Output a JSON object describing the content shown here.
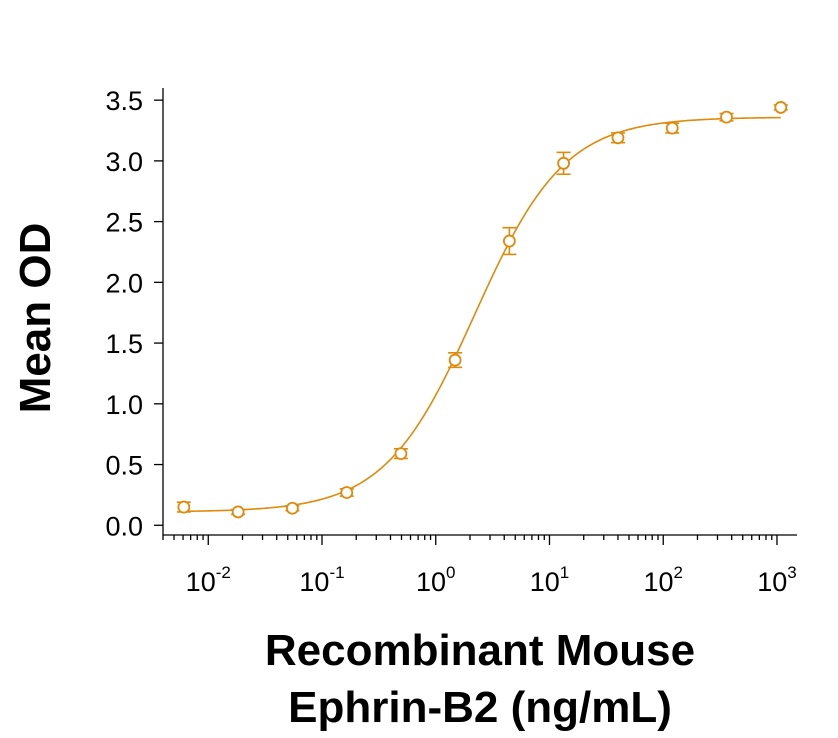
{
  "chart_data": {
    "type": "scatter",
    "title": "",
    "ylabel": "Mean OD",
    "xlabel_lines": [
      "Recombinant Mouse",
      "Ephrin-B2 (ng/mL)"
    ],
    "x_scale": "log",
    "xlim": [
      0.004,
      1500
    ],
    "ylim": [
      -0.08,
      3.6
    ],
    "y_ticks": [
      "0.0",
      "0.5",
      "1.0",
      "1.5",
      "2.0",
      "2.5",
      "3.0",
      "3.5"
    ],
    "x_ticks": [
      {
        "base": "10",
        "exp": "-2"
      },
      {
        "base": "10",
        "exp": "-1"
      },
      {
        "base": "10",
        "exp": "0"
      },
      {
        "base": "10",
        "exp": "1"
      },
      {
        "base": "10",
        "exp": "2"
      },
      {
        "base": "10",
        "exp": "3"
      }
    ],
    "color": "#E08A0B",
    "grid": false,
    "series": [
      {
        "points": [
          {
            "x": 0.0061,
            "y": 0.15,
            "err": 0.04
          },
          {
            "x": 0.0183,
            "y": 0.11,
            "err": 0.02
          },
          {
            "x": 0.0549,
            "y": 0.14,
            "err": 0.02
          },
          {
            "x": 0.165,
            "y": 0.27,
            "err": 0.03
          },
          {
            "x": 0.494,
            "y": 0.59,
            "err": 0.04
          },
          {
            "x": 1.48,
            "y": 1.36,
            "err": 0.06
          },
          {
            "x": 4.44,
            "y": 2.34,
            "err": 0.11
          },
          {
            "x": 13.3,
            "y": 2.98,
            "err": 0.09
          },
          {
            "x": 40.0,
            "y": 3.19,
            "err": 0.04
          },
          {
            "x": 120,
            "y": 3.27,
            "err": 0.04
          },
          {
            "x": 360,
            "y": 3.36,
            "err": 0.03
          },
          {
            "x": 1080,
            "y": 3.44,
            "err": 0.02
          }
        ],
        "fit": {
          "model": "4PL",
          "bottom": 0.11,
          "top": 3.36,
          "ec50": 2.2,
          "hill": 1.1
        }
      }
    ]
  }
}
